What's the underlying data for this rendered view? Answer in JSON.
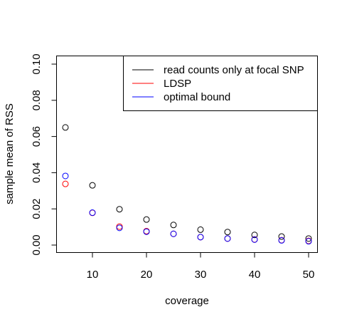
{
  "chart_data": {
    "type": "scatter",
    "title": "",
    "xlabel": "coverage",
    "ylabel": "sample mean of RSS",
    "xlim": [
      3.5,
      51.5
    ],
    "ylim": [
      0.0,
      0.1
    ],
    "xticks": [
      10,
      20,
      30,
      40,
      50
    ],
    "xtick_labels": [
      "10",
      "20",
      "30",
      "40",
      "50"
    ],
    "yticks": [
      0.0,
      0.02,
      0.04,
      0.06,
      0.08,
      0.1
    ],
    "ytick_labels": [
      "0.00",
      "0.02",
      "0.04",
      "0.06",
      "0.08",
      "0.10"
    ],
    "grid": false,
    "legend_position": "top-right",
    "x": [
      5,
      10,
      15,
      20,
      25,
      30,
      35,
      40,
      45,
      50
    ],
    "series": [
      {
        "name": "read counts only at focal SNP",
        "color": "#000000",
        "marker": "open-circle",
        "values": [
          0.065,
          0.033,
          0.0198,
          0.0141,
          0.0111,
          0.0085,
          0.0072,
          0.0056,
          0.0047,
          0.0036
        ]
      },
      {
        "name": "LDSP",
        "color": "#ff0000",
        "marker": "open-circle",
        "values": [
          0.0338,
          0.0178,
          0.0102,
          0.0077,
          0.0062,
          0.0044,
          0.0036,
          0.0031,
          0.0027,
          0.0023
        ]
      },
      {
        "name": "optimal bound",
        "color": "#0000ff",
        "marker": "open-circle",
        "values": [
          0.0382,
          0.0179,
          0.0095,
          0.0074,
          0.0062,
          0.0044,
          0.0036,
          0.003,
          0.0026,
          0.0021
        ]
      }
    ]
  }
}
